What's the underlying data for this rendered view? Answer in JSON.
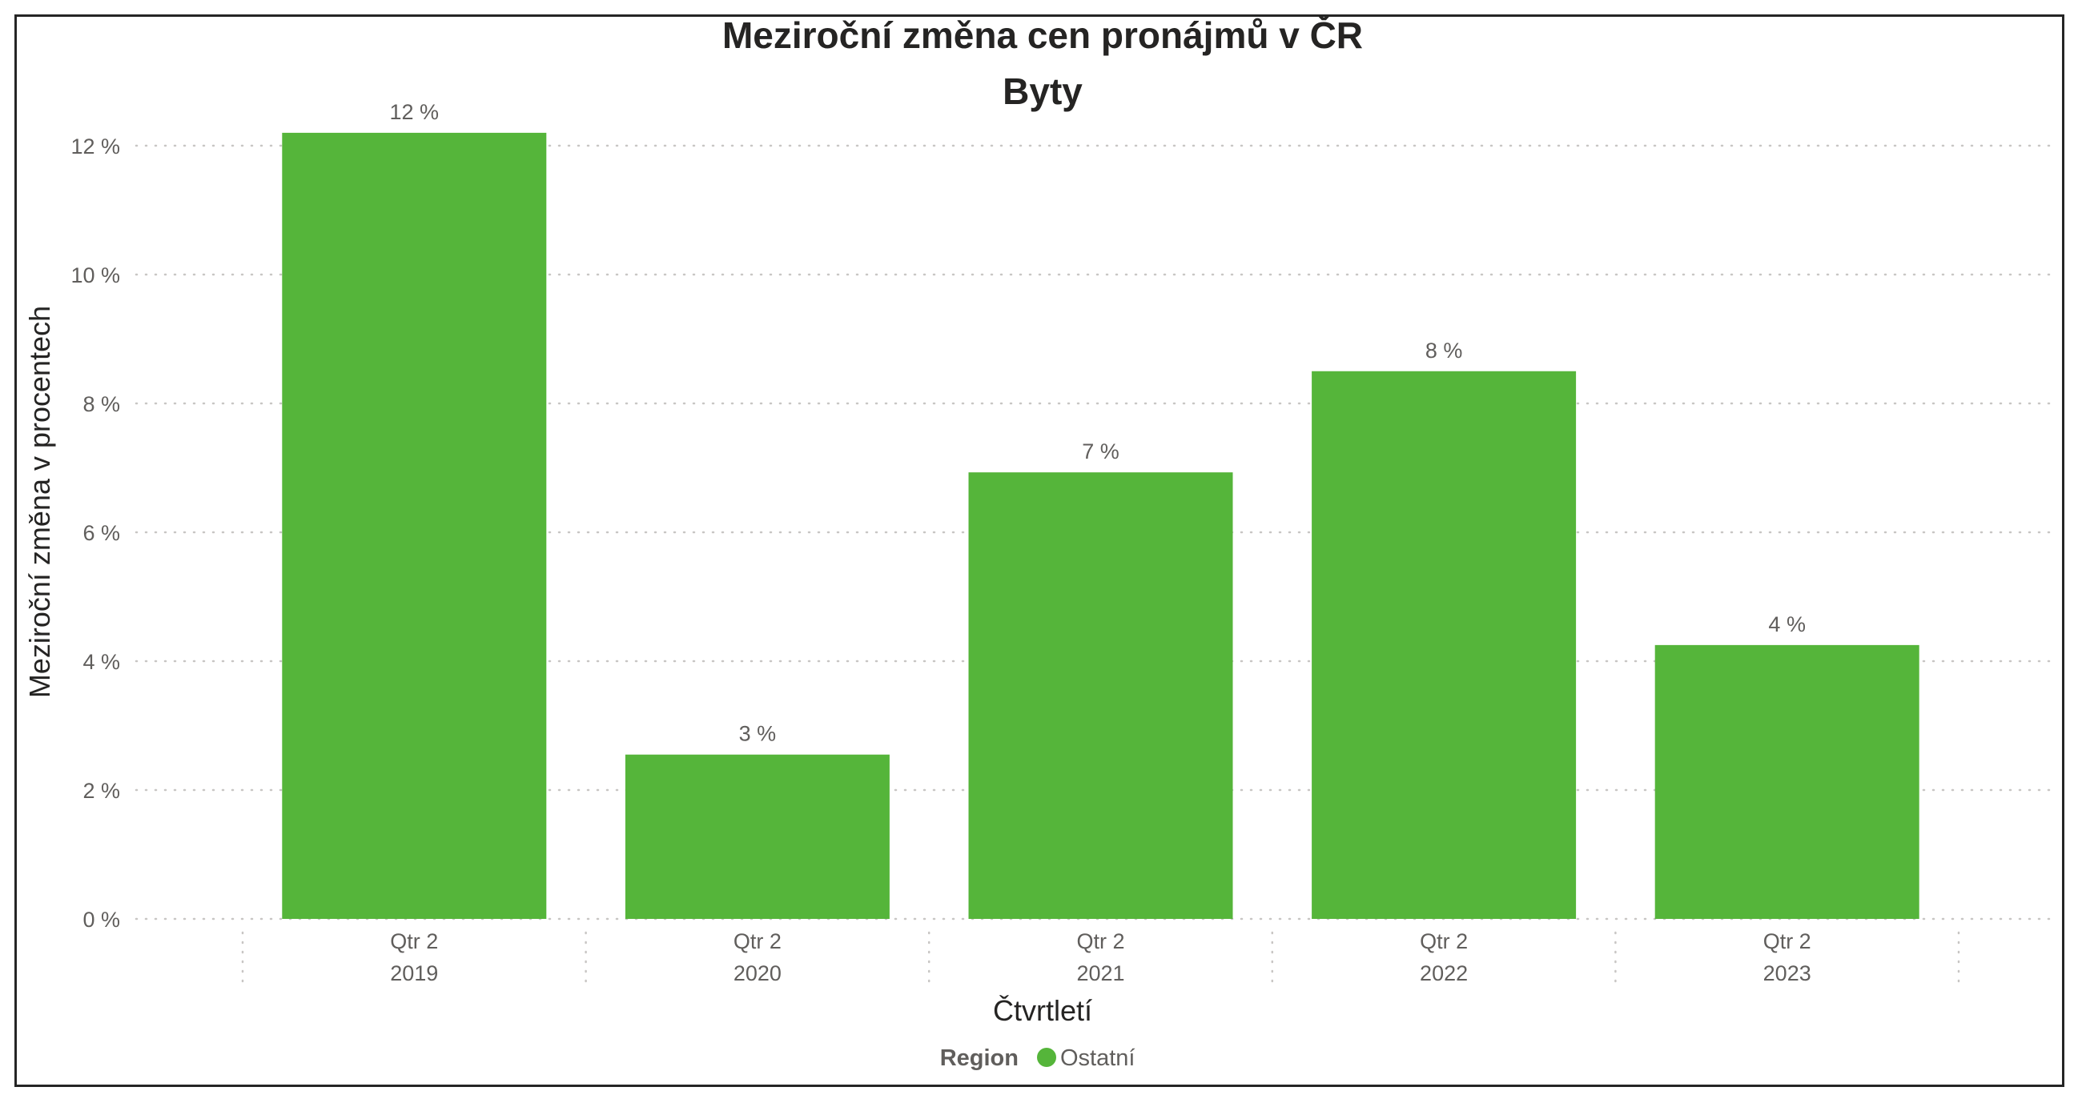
{
  "chart_data": {
    "type": "bar",
    "title": "Meziroční změna cen pronájmů v ČR",
    "subtitle": "Byty",
    "xlabel": "Čtvrtletí",
    "ylabel": "Meziroční změna v procentech",
    "categories": [
      {
        "quarter": "Qtr 2",
        "year": "2019"
      },
      {
        "quarter": "Qtr 2",
        "year": "2020"
      },
      {
        "quarter": "Qtr 2",
        "year": "2021"
      },
      {
        "quarter": "Qtr 2",
        "year": "2022"
      },
      {
        "quarter": "Qtr 2",
        "year": "2023"
      }
    ],
    "series": [
      {
        "name": "Ostatní",
        "values": [
          12.2,
          2.55,
          6.93,
          8.5,
          4.25
        ],
        "data_labels": [
          "12 %",
          "3 %",
          "7 %",
          "8 %",
          "4 %"
        ],
        "color": "#55b53a"
      }
    ],
    "ylim": [
      0,
      12
    ],
    "yticks": [
      0,
      2,
      4,
      6,
      8,
      10,
      12
    ],
    "ytick_labels": [
      "0 %",
      "2 %",
      "4 %",
      "6 %",
      "8 %",
      "10 %",
      "12 %"
    ],
    "grid": true,
    "legend": {
      "title": "Region",
      "position": "bottom-center"
    }
  }
}
